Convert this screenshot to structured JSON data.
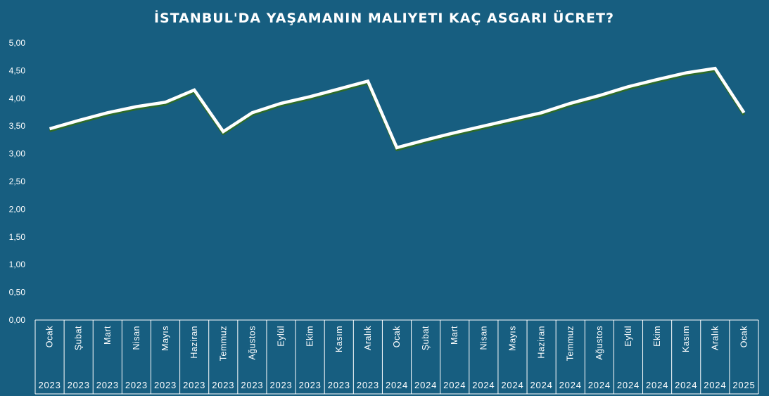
{
  "chart_data": {
    "type": "area",
    "title": "İSTANBUL'DA YAŞAMANIN MALIYETI KAÇ ASGARI ÜCRET?",
    "categories": [
      "Ocak",
      "Şubat",
      "Mart",
      "Nisan",
      "Mayıs",
      "Haziran",
      "Temmuz",
      "Ağustos",
      "Eylül",
      "Ekim",
      "Kasım",
      "Aralık",
      "Ocak",
      "Şubat",
      "Mart",
      "Nisan",
      "Mayıs",
      "Haziran",
      "Temmuz",
      "Ağustos",
      "Eylül",
      "Ekim",
      "Kasım",
      "Aralık",
      "Ocak"
    ],
    "years": [
      "2023",
      "2023",
      "2023",
      "2023",
      "2023",
      "2023",
      "2023",
      "2023",
      "2023",
      "2023",
      "2023",
      "2023",
      "2024",
      "2024",
      "2024",
      "2024",
      "2024",
      "2024",
      "2024",
      "2024",
      "2024",
      "2024",
      "2024",
      "2024",
      "2025"
    ],
    "values": [
      3.45,
      3.6,
      3.74,
      3.85,
      3.93,
      4.15,
      3.4,
      3.74,
      3.91,
      4.03,
      4.17,
      4.31,
      3.11,
      3.25,
      3.38,
      3.5,
      3.62,
      3.74,
      3.91,
      4.05,
      4.21,
      4.34,
      4.46,
      4.54,
      3.74
    ],
    "yticks": [
      "0,00",
      "0,50",
      "1,00",
      "1,50",
      "2,00",
      "2,50",
      "3,00",
      "3,50",
      "4,00",
      "4,50",
      "5,00"
    ],
    "ylim": [
      0,
      5
    ],
    "grid": false,
    "legend": "none",
    "colors": {
      "background": "#175e80",
      "line": "#ffffff",
      "shadow": "#2e6b2a",
      "drop": "#ffffff",
      "text": "#ffffff"
    }
  }
}
